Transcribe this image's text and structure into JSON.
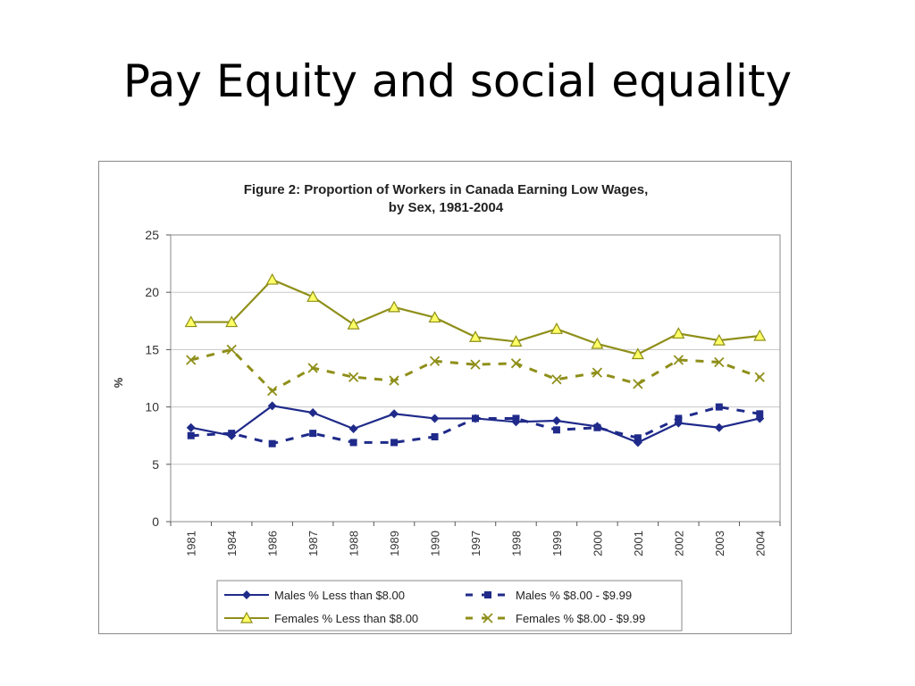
{
  "slide": {
    "title": "Pay Equity and social equality"
  },
  "chart_data": {
    "type": "line",
    "title_line1": "Figure 2: Proportion of Workers in Canada Earning Low Wages,",
    "title_line2": "by Sex, 1981-2004",
    "ylabel": "%",
    "ylim": [
      0,
      25
    ],
    "yticks": [
      "0",
      "5",
      "10",
      "15",
      "20",
      "25"
    ],
    "categories": [
      "1981",
      "1984",
      "1986",
      "1987",
      "1988",
      "1989",
      "1990",
      "1997",
      "1998",
      "1999",
      "2000",
      "2001",
      "2002",
      "2003",
      "2004"
    ],
    "grid": true,
    "legend_position": "bottom",
    "series": [
      {
        "name": "Males % Less than $8.00",
        "color": "#1f2a8a",
        "style": "solid",
        "marker": "diamond",
        "values": [
          8.2,
          7.5,
          10.1,
          9.5,
          8.1,
          9.4,
          9.0,
          9.0,
          8.7,
          8.8,
          8.3,
          6.9,
          8.6,
          8.2,
          9.0
        ]
      },
      {
        "name": "Males % $8.00 - $9.99",
        "color": "#1f2a8a",
        "style": "dashed",
        "marker": "square",
        "values": [
          7.5,
          7.7,
          6.8,
          7.7,
          6.9,
          6.9,
          7.4,
          9.0,
          9.0,
          8.0,
          8.2,
          7.3,
          9.0,
          10.0,
          9.4
        ]
      },
      {
        "name": "Females % Less than $8.00",
        "color": "#8f8f1a",
        "style": "solid",
        "marker": "triangle",
        "values": [
          17.4,
          17.4,
          21.1,
          19.6,
          17.2,
          18.7,
          17.8,
          16.1,
          15.7,
          16.8,
          15.5,
          14.6,
          16.4,
          15.8,
          16.2
        ]
      },
      {
        "name": "Females % $8.00 - $9.99",
        "color": "#8f8f1a",
        "style": "dashed",
        "marker": "x",
        "values": [
          14.1,
          15.0,
          11.4,
          13.4,
          12.6,
          12.3,
          14.0,
          13.7,
          13.8,
          12.4,
          13.0,
          12.0,
          14.1,
          13.9,
          12.6
        ]
      }
    ]
  }
}
